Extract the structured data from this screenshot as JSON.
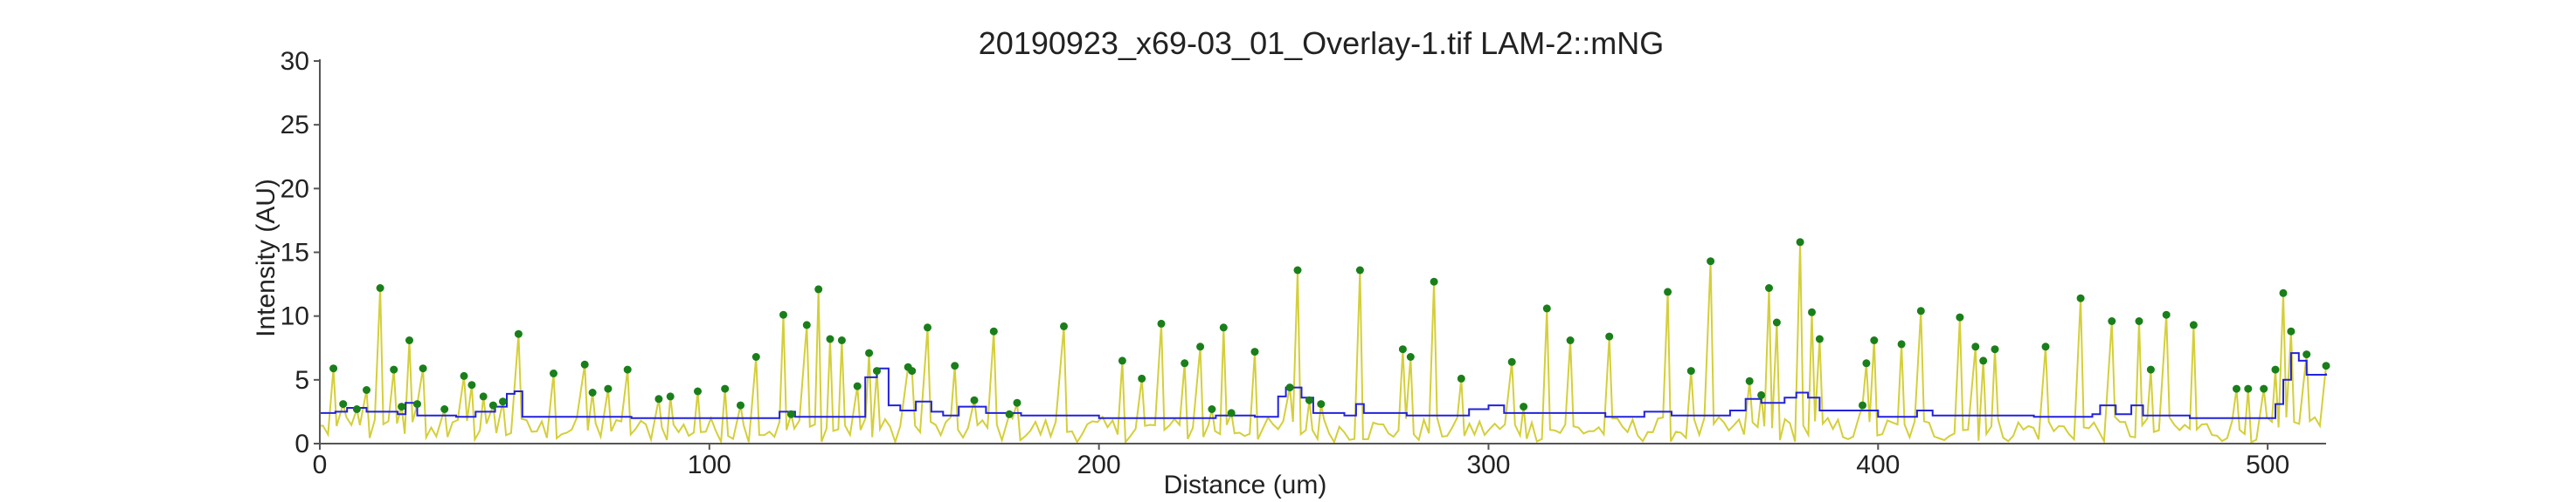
{
  "chart_data": {
    "type": "line",
    "title": "20190923_x69-03_01_Overlay-1.tif LAM-2::mNG",
    "xlabel": "Distance (um)",
    "ylabel": "Intensity (AU)",
    "xlim": [
      0,
      515
    ],
    "ylim": [
      0,
      30
    ],
    "xticks": [
      0,
      100,
      200,
      300,
      400,
      500
    ],
    "yticks": [
      0,
      5,
      10,
      15,
      20,
      25,
      30
    ],
    "grid": false,
    "colors": {
      "intensity": "#d4cf3a",
      "background": "#2222dd",
      "peaks": "#1a7f1a",
      "axes": "#555555"
    },
    "peaks": [
      [
        3.5,
        5.9
      ],
      [
        6,
        3.1
      ],
      [
        9.5,
        2.7
      ],
      [
        12,
        4.2
      ],
      [
        15.5,
        12.2
      ],
      [
        19,
        5.8
      ],
      [
        21,
        2.9
      ],
      [
        23,
        8.1
      ],
      [
        25,
        3.1
      ],
      [
        26.5,
        5.9
      ],
      [
        32,
        2.7
      ],
      [
        37,
        5.3
      ],
      [
        39,
        4.6
      ],
      [
        42,
        3.7
      ],
      [
        44.5,
        3.0
      ],
      [
        47,
        3.3
      ],
      [
        51,
        8.6
      ],
      [
        60,
        5.5
      ],
      [
        68,
        6.2
      ],
      [
        70,
        4.0
      ],
      [
        74,
        4.3
      ],
      [
        79,
        5.8
      ],
      [
        87,
        3.5
      ],
      [
        90,
        3.7
      ],
      [
        97,
        4.1
      ],
      [
        104,
        4.3
      ],
      [
        108,
        3.0
      ],
      [
        112,
        6.8
      ],
      [
        119,
        10.1
      ],
      [
        121,
        2.3
      ],
      [
        125,
        9.3
      ],
      [
        128,
        12.1
      ],
      [
        131,
        8.2
      ],
      [
        134,
        8.1
      ],
      [
        138,
        4.5
      ],
      [
        141,
        7.1
      ],
      [
        143,
        5.7
      ],
      [
        151,
        6.0
      ],
      [
        152,
        5.7
      ],
      [
        156,
        9.1
      ],
      [
        163,
        6.1
      ],
      [
        168,
        3.4
      ],
      [
        173,
        8.8
      ],
      [
        177,
        2.3
      ],
      [
        179,
        3.2
      ],
      [
        191,
        9.2
      ],
      [
        206,
        6.5
      ],
      [
        211,
        5.1
      ],
      [
        216,
        9.4
      ],
      [
        222,
        6.3
      ],
      [
        226,
        7.6
      ],
      [
        229,
        2.7
      ],
      [
        232,
        9.1
      ],
      [
        234,
        2.4
      ],
      [
        240,
        7.2
      ],
      [
        249,
        4.4
      ],
      [
        251,
        13.6
      ],
      [
        254,
        3.4
      ],
      [
        257,
        3.1
      ],
      [
        267,
        13.6
      ],
      [
        278,
        7.4
      ],
      [
        280,
        6.8
      ],
      [
        286,
        12.7
      ],
      [
        293,
        5.1
      ],
      [
        306,
        6.4
      ],
      [
        309,
        2.9
      ],
      [
        315,
        10.6
      ],
      [
        321,
        8.1
      ],
      [
        331,
        8.4
      ],
      [
        346,
        11.9
      ],
      [
        352,
        5.7
      ],
      [
        357,
        14.3
      ],
      [
        367,
        4.9
      ],
      [
        370,
        3.8
      ],
      [
        372,
        12.2
      ],
      [
        374,
        9.5
      ],
      [
        380,
        15.8
      ],
      [
        383,
        10.3
      ],
      [
        385,
        8.2
      ],
      [
        396,
        3.0
      ],
      [
        397,
        6.3
      ],
      [
        399,
        8.1
      ],
      [
        406,
        7.8
      ],
      [
        411,
        10.4
      ],
      [
        421,
        9.9
      ],
      [
        425,
        7.6
      ],
      [
        427,
        6.5
      ],
      [
        430,
        7.4
      ],
      [
        443,
        7.6
      ],
      [
        452,
        11.4
      ],
      [
        460,
        9.6
      ],
      [
        467,
        9.6
      ],
      [
        470,
        5.8
      ],
      [
        474,
        10.1
      ],
      [
        481,
        9.3
      ],
      [
        492,
        4.3
      ],
      [
        495,
        4.3
      ],
      [
        499,
        4.3
      ],
      [
        502,
        5.8
      ],
      [
        504,
        11.8
      ],
      [
        506,
        8.8
      ],
      [
        510,
        7.0
      ],
      [
        515,
        6.1
      ]
    ],
    "background_level": [
      [
        0,
        2.4
      ],
      [
        4,
        2.5
      ],
      [
        7,
        2.8
      ],
      [
        12,
        2.5
      ],
      [
        20,
        2.3
      ],
      [
        22,
        3.2
      ],
      [
        25,
        2.2
      ],
      [
        35,
        2.1
      ],
      [
        40,
        2.5
      ],
      [
        45,
        2.9
      ],
      [
        48,
        3.9
      ],
      [
        50,
        4.1
      ],
      [
        52,
        2.1
      ],
      [
        80,
        2.0
      ],
      [
        110,
        2.0
      ],
      [
        118,
        2.5
      ],
      [
        122,
        2.1
      ],
      [
        135,
        2.1
      ],
      [
        140,
        5.2
      ],
      [
        143,
        5.9
      ],
      [
        146,
        3.0
      ],
      [
        149,
        2.6
      ],
      [
        153,
        3.3
      ],
      [
        157,
        2.5
      ],
      [
        160,
        2.2
      ],
      [
        164,
        2.9
      ],
      [
        171,
        2.4
      ],
      [
        180,
        2.2
      ],
      [
        200,
        2.0
      ],
      [
        230,
        2.2
      ],
      [
        240,
        2.1
      ],
      [
        246,
        3.7
      ],
      [
        248,
        4.4
      ],
      [
        252,
        3.6
      ],
      [
        255,
        2.4
      ],
      [
        263,
        2.2
      ],
      [
        266,
        3.1
      ],
      [
        268,
        2.4
      ],
      [
        279,
        2.2
      ],
      [
        295,
        2.7
      ],
      [
        300,
        3.0
      ],
      [
        304,
        2.4
      ],
      [
        320,
        2.4
      ],
      [
        330,
        2.1
      ],
      [
        340,
        2.5
      ],
      [
        347,
        2.2
      ],
      [
        362,
        2.6
      ],
      [
        366,
        3.5
      ],
      [
        370,
        3.2
      ],
      [
        376,
        3.6
      ],
      [
        379,
        4.0
      ],
      [
        382,
        3.6
      ],
      [
        385,
        2.6
      ],
      [
        400,
        2.1
      ],
      [
        410,
        2.6
      ],
      [
        414,
        2.2
      ],
      [
        440,
        2.1
      ],
      [
        455,
        2.3
      ],
      [
        457,
        3.0
      ],
      [
        461,
        2.3
      ],
      [
        465,
        3.0
      ],
      [
        468,
        2.2
      ],
      [
        480,
        2.0
      ],
      [
        500,
        2.0
      ],
      [
        502,
        3.1
      ],
      [
        504,
        5.0
      ],
      [
        506,
        7.1
      ],
      [
        508,
        6.5
      ],
      [
        510,
        5.4
      ],
      [
        515,
        5.5
      ]
    ]
  }
}
